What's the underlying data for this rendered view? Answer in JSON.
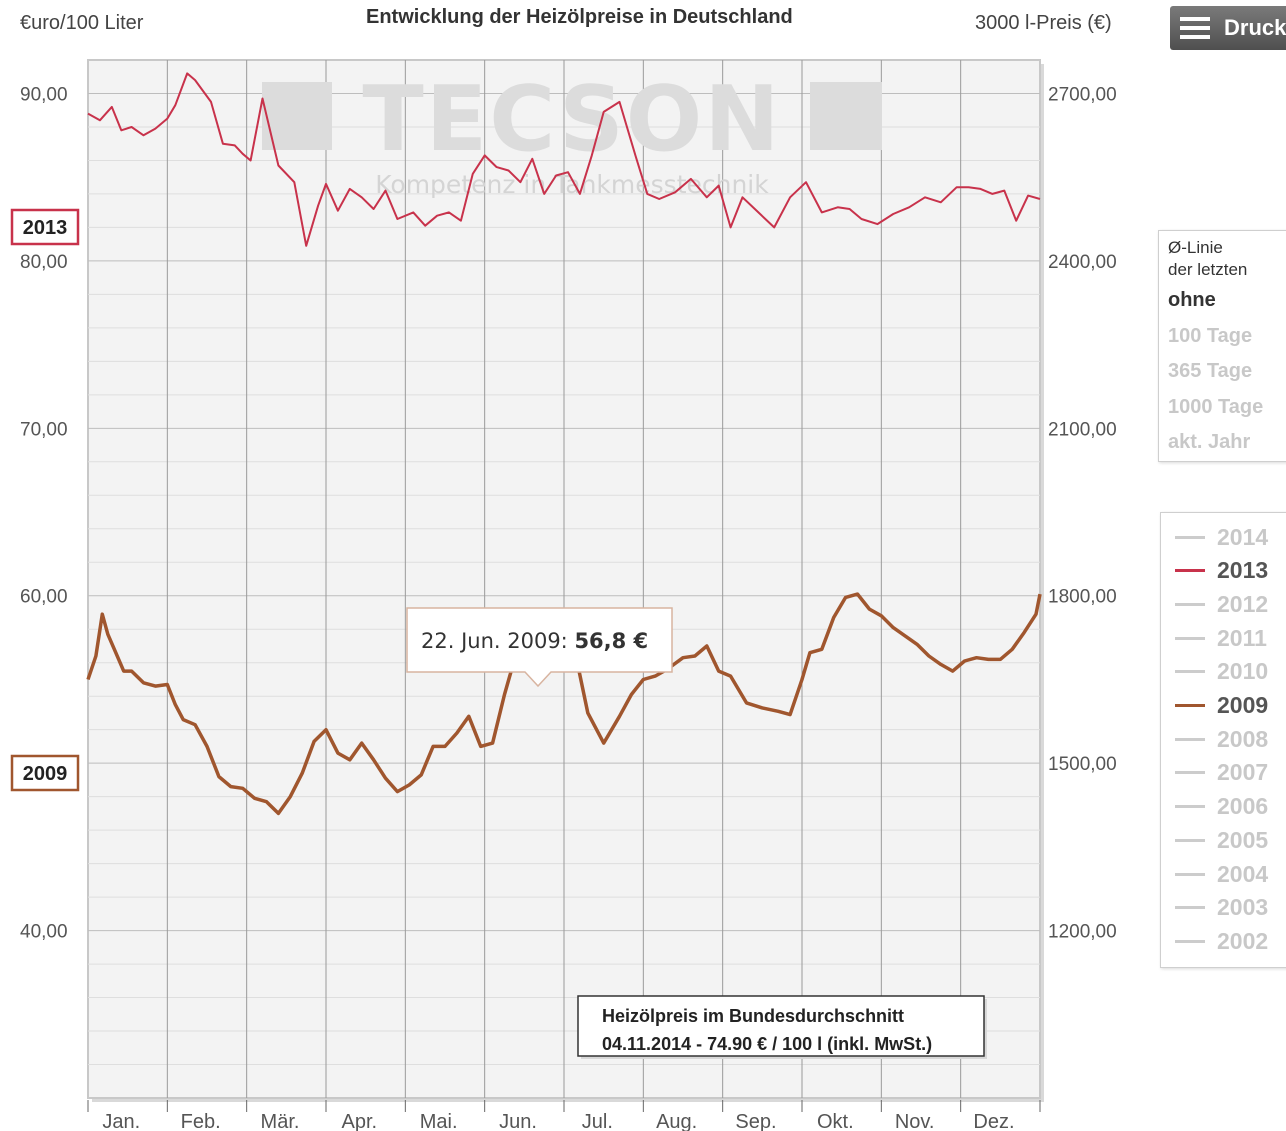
{
  "header": {
    "left_label": "€uro/100 Liter",
    "title": "Entwicklung der Heizölpreise in Deutschland",
    "right_label": "3000 l-Preis (€)",
    "print_label": "Druck"
  },
  "watermark": {
    "brand": "TECSON",
    "tagline": "Kompetenz in Tankmesstechnik"
  },
  "tooltip": {
    "date": "22. Jun. 2009:",
    "value": "56,8 €"
  },
  "info_box": {
    "line1": "Heizölpreis im Bundesdurchschnitt",
    "line2": "04.11.2014 - 74.90 € / 100 l (inkl. MwSt.)"
  },
  "avg_panel": {
    "title_line1": "Ø-Linie",
    "title_line2": "der letzten",
    "options": [
      {
        "label": "ohne",
        "active": true
      },
      {
        "label": "100 Tage",
        "active": false
      },
      {
        "label": "365 Tage",
        "active": false
      },
      {
        "label": "1000 Tage",
        "active": false
      },
      {
        "label": "akt. Jahr",
        "active": false
      }
    ]
  },
  "year_legend": [
    {
      "year": "2014",
      "state": "hidden"
    },
    {
      "year": "2013",
      "state": "visible",
      "color": "#c8324b"
    },
    {
      "year": "2012",
      "state": "hidden"
    },
    {
      "year": "2011",
      "state": "hidden"
    },
    {
      "year": "2010",
      "state": "hidden"
    },
    {
      "year": "2009",
      "state": "visible",
      "color": "#a0562e"
    },
    {
      "year": "2008",
      "state": "hidden"
    },
    {
      "year": "2007",
      "state": "hidden"
    },
    {
      "year": "2006",
      "state": "hidden"
    },
    {
      "year": "2005",
      "state": "hidden"
    },
    {
      "year": "2004",
      "state": "hidden"
    },
    {
      "year": "2003",
      "state": "hidden"
    },
    {
      "year": "2002",
      "state": "hidden"
    }
  ],
  "chart_data": {
    "type": "line",
    "ylabel_left": "€uro/100 Liter",
    "ylabel_right": "3000 l-Preis (€)",
    "ylim": [
      30,
      92
    ],
    "y_ticks": [
      40,
      50,
      60,
      70,
      80,
      90
    ],
    "y_tick_labels_left": [
      "40,00",
      "50,00",
      "60,00",
      "70,00",
      "80,00",
      "90,00"
    ],
    "y_tick_labels_right": [
      "1200,00",
      "1500,00",
      "1800,00",
      "2100,00",
      "2400,00",
      "2700,00"
    ],
    "categories": [
      "Jan.",
      "Feb.",
      "Mär.",
      "Apr.",
      "Mai.",
      "Jun.",
      "Jul.",
      "Aug.",
      "Sep.",
      "Okt.",
      "Nov.",
      "Dez."
    ],
    "xlim": [
      0,
      12
    ],
    "grid": true,
    "series": [
      {
        "name": "2013",
        "color": "#c8324b",
        "x": [
          0.0,
          0.15,
          0.3,
          0.42,
          0.55,
          0.7,
          0.85,
          1.0,
          1.1,
          1.25,
          1.35,
          1.55,
          1.7,
          1.85,
          1.95,
          2.05,
          2.2,
          2.4,
          2.6,
          2.75,
          2.9,
          3.0,
          3.15,
          3.3,
          3.45,
          3.6,
          3.75,
          3.9,
          4.1,
          4.25,
          4.4,
          4.55,
          4.7,
          4.85,
          5.0,
          5.15,
          5.3,
          5.45,
          5.6,
          5.75,
          5.9,
          6.05,
          6.2,
          6.35,
          6.5,
          6.7,
          6.9,
          7.05,
          7.2,
          7.4,
          7.6,
          7.8,
          7.95,
          8.1,
          8.25,
          8.45,
          8.65,
          8.85,
          9.05,
          9.25,
          9.45,
          9.6,
          9.75,
          9.95,
          10.15,
          10.35,
          10.55,
          10.75,
          10.95,
          11.1,
          11.25,
          11.4,
          11.55,
          11.7,
          11.85,
          12.0
        ],
        "values": [
          88.8,
          88.4,
          89.2,
          87.8,
          88.0,
          87.5,
          87.9,
          88.5,
          89.3,
          91.2,
          90.8,
          89.5,
          87.0,
          86.9,
          86.4,
          86.0,
          89.7,
          85.7,
          84.7,
          80.9,
          83.3,
          84.6,
          83.0,
          84.3,
          83.8,
          83.1,
          84.2,
          82.5,
          82.9,
          82.1,
          82.7,
          82.9,
          82.4,
          85.2,
          86.3,
          85.6,
          85.4,
          84.7,
          86.1,
          84.0,
          85.1,
          85.3,
          84.0,
          86.3,
          88.9,
          89.5,
          86.3,
          84.0,
          83.7,
          84.1,
          84.9,
          83.8,
          84.5,
          82.0,
          83.8,
          82.9,
          82.0,
          83.8,
          84.7,
          82.9,
          83.2,
          83.1,
          82.5,
          82.2,
          82.8,
          83.2,
          83.8,
          83.5,
          84.4,
          84.4,
          84.3,
          84.0,
          84.2,
          82.4,
          83.9,
          83.7
        ]
      },
      {
        "name": "2009",
        "color": "#a0562e",
        "x": [
          0.0,
          0.1,
          0.18,
          0.25,
          0.35,
          0.45,
          0.55,
          0.7,
          0.85,
          1.0,
          1.1,
          1.2,
          1.35,
          1.5,
          1.65,
          1.8,
          1.95,
          2.1,
          2.25,
          2.4,
          2.55,
          2.7,
          2.85,
          3.0,
          3.15,
          3.3,
          3.45,
          3.6,
          3.75,
          3.9,
          4.05,
          4.2,
          4.35,
          4.5,
          4.65,
          4.8,
          4.95,
          5.1,
          5.25,
          5.4,
          5.55,
          5.7,
          5.85,
          6.0,
          6.15,
          6.3,
          6.5,
          6.7,
          6.85,
          7.0,
          7.15,
          7.3,
          7.5,
          7.65,
          7.8,
          7.95,
          8.1,
          8.3,
          8.5,
          8.7,
          8.85,
          9.0,
          9.1,
          9.25,
          9.4,
          9.55,
          9.7,
          9.85,
          10.0,
          10.15,
          10.3,
          10.45,
          10.6,
          10.75,
          10.9,
          11.05,
          11.2,
          11.35,
          11.5,
          11.65,
          11.8,
          11.95,
          12.0
        ],
        "values": [
          55.0,
          56.4,
          58.9,
          57.7,
          56.6,
          55.5,
          55.5,
          54.8,
          54.6,
          54.7,
          53.5,
          52.6,
          52.3,
          51.0,
          49.2,
          48.6,
          48.5,
          47.9,
          47.7,
          47.0,
          48.0,
          49.4,
          51.3,
          52.0,
          50.6,
          50.2,
          51.2,
          50.2,
          49.1,
          48.3,
          48.7,
          49.3,
          51.0,
          51.0,
          51.8,
          52.8,
          51.0,
          51.2,
          54.1,
          56.6,
          57.0,
          56.8,
          56.2,
          55.7,
          56.4,
          53.0,
          51.2,
          52.8,
          54.1,
          55.0,
          55.2,
          55.6,
          56.3,
          56.4,
          57.0,
          55.5,
          55.2,
          53.6,
          53.3,
          53.1,
          52.9,
          55.0,
          56.6,
          56.8,
          58.7,
          59.9,
          60.1,
          59.2,
          58.8,
          58.1,
          57.6,
          57.1,
          56.4,
          55.9,
          55.5,
          56.1,
          56.3,
          56.2,
          56.2,
          56.8,
          57.8,
          58.9,
          60.1
        ]
      }
    ],
    "annotations": [
      "2013",
      "2009"
    ]
  }
}
